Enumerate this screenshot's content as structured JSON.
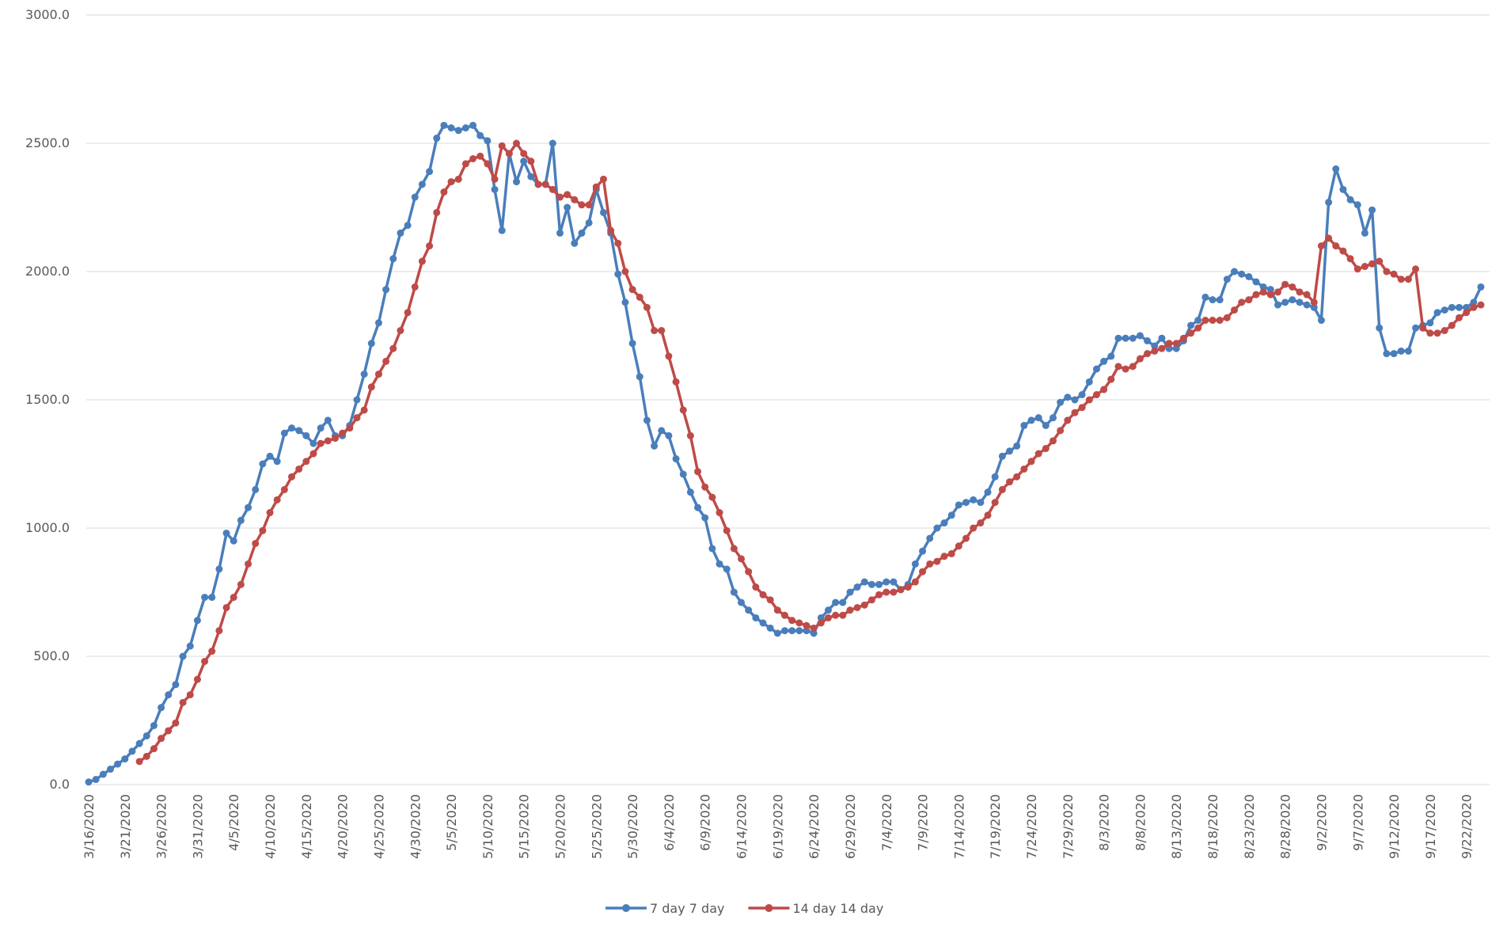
{
  "chart_data": {
    "type": "line",
    "categories": [
      "3/16/2020",
      null,
      null,
      null,
      null,
      "3/21/2020",
      null,
      null,
      null,
      null,
      "3/26/2020",
      null,
      null,
      null,
      null,
      "3/31/2020",
      null,
      null,
      null,
      null,
      "4/5/2020",
      null,
      null,
      null,
      null,
      "4/10/2020",
      null,
      null,
      null,
      null,
      "4/15/2020",
      null,
      null,
      null,
      null,
      "4/20/2020",
      null,
      null,
      null,
      null,
      "4/25/2020",
      null,
      null,
      null,
      null,
      "4/30/2020",
      null,
      null,
      null,
      null,
      "5/5/2020",
      null,
      null,
      null,
      null,
      "5/10/2020",
      null,
      null,
      null,
      null,
      "5/15/2020",
      null,
      null,
      null,
      null,
      "5/20/2020",
      null,
      null,
      null,
      null,
      "5/25/2020",
      null,
      null,
      null,
      null,
      "5/30/2020",
      null,
      null,
      null,
      null,
      "6/4/2020",
      null,
      null,
      null,
      null,
      "6/9/2020",
      null,
      null,
      null,
      null,
      "6/14/2020",
      null,
      null,
      null,
      null,
      "6/19/2020",
      null,
      null,
      null,
      null,
      "6/24/2020",
      null,
      null,
      null,
      null,
      "6/29/2020",
      null,
      null,
      null,
      null,
      "7/4/2020",
      null,
      null,
      null,
      null,
      "7/9/2020",
      null,
      null,
      null,
      null,
      "7/14/2020",
      null,
      null,
      null,
      null,
      "7/19/2020",
      null,
      null,
      null,
      null,
      "7/24/2020",
      null,
      null,
      null,
      null,
      "7/29/2020",
      null,
      null,
      null,
      null,
      "8/3/2020",
      null,
      null,
      null,
      null,
      "8/8/2020",
      null,
      null,
      null,
      null,
      "8/13/2020",
      null,
      null,
      null,
      null,
      "8/18/2020",
      null,
      null,
      null,
      null,
      "8/23/2020",
      null,
      null,
      null,
      null,
      "8/28/2020",
      null,
      null,
      null,
      null,
      "9/2/2020",
      null,
      null,
      null,
      null,
      "9/7/2020",
      null,
      null,
      null,
      null,
      "9/12/2020",
      null,
      null,
      null,
      null,
      "9/17/2020",
      null,
      null,
      null,
      null,
      "9/22/2020",
      null,
      null
    ],
    "series": [
      {
        "name": "7 day  7 day",
        "color": "#4a7ebb",
        "values": [
          10,
          20,
          40,
          60,
          80,
          100,
          130,
          160,
          190,
          230,
          300,
          350,
          390,
          500,
          540,
          640,
          730,
          730,
          840,
          980,
          950,
          1030,
          1080,
          1150,
          1250,
          1280,
          1260,
          1370,
          1390,
          1380,
          1360,
          1330,
          1390,
          1420,
          1360,
          1360,
          1400,
          1500,
          1600,
          1720,
          1800,
          1930,
          2050,
          2150,
          2180,
          2290,
          2340,
          2390,
          2520,
          2570,
          2560,
          2550,
          2560,
          2570,
          2530,
          2510,
          2320,
          2160,
          2460,
          2350,
          2430,
          2370,
          2340,
          2340,
          2500,
          2150,
          2250,
          2110,
          2150,
          2190,
          2320,
          2230,
          2150,
          1990,
          1880,
          1720,
          1590,
          1420,
          1320,
          1380,
          1360,
          1270,
          1210,
          1140,
          1080,
          1040,
          920,
          860,
          840,
          750,
          710,
          680,
          650,
          630,
          610,
          590,
          600,
          600,
          600,
          600,
          590,
          650,
          680,
          710,
          710,
          750,
          770,
          790,
          780,
          780,
          790,
          790,
          760,
          780,
          860,
          910,
          960,
          1000,
          1020,
          1050,
          1090,
          1100,
          1110,
          1100,
          1140,
          1200,
          1280,
          1300,
          1320,
          1400,
          1420,
          1430,
          1400,
          1430,
          1490,
          1510,
          1500,
          1520,
          1570,
          1620,
          1650,
          1670,
          1740,
          1740,
          1740,
          1750,
          1730,
          1710,
          1740,
          1700,
          1700,
          1730,
          1790,
          1810,
          1900,
          1890,
          1890,
          1970,
          2000,
          1990,
          1980,
          1960,
          1940,
          1930,
          1870,
          1880,
          1890,
          1880,
          1870,
          1860,
          1810,
          2270,
          2400,
          2320,
          2280,
          2260,
          2150,
          2240,
          1780,
          1680,
          1680,
          1690,
          1690,
          1780,
          1790,
          1800,
          1840,
          1850,
          1860,
          1860,
          1860,
          1880,
          1940
        ]
      },
      {
        "name": "14 day 14 day",
        "color": "#be4b48",
        "values": [
          null,
          null,
          null,
          null,
          null,
          null,
          null,
          90,
          110,
          140,
          180,
          210,
          240,
          320,
          350,
          410,
          480,
          520,
          600,
          690,
          730,
          780,
          860,
          940,
          990,
          1060,
          1110,
          1150,
          1200,
          1230,
          1260,
          1290,
          1330,
          1340,
          1350,
          1370,
          1390,
          1430,
          1460,
          1550,
          1600,
          1650,
          1700,
          1770,
          1840,
          1940,
          2040,
          2100,
          2230,
          2310,
          2350,
          2360,
          2420,
          2440,
          2450,
          2420,
          2360,
          2490,
          2460,
          2500,
          2460,
          2430,
          2340,
          2340,
          2320,
          2290,
          2300,
          2280,
          2260,
          2260,
          2330,
          2360,
          2160,
          2110,
          2000,
          1930,
          1900,
          1860,
          1770,
          1770,
          1670,
          1570,
          1460,
          1360,
          1220,
          1160,
          1120,
          1060,
          990,
          920,
          880,
          830,
          770,
          740,
          720,
          680,
          660,
          640,
          630,
          620,
          610,
          630,
          650,
          660,
          660,
          680,
          690,
          700,
          720,
          740,
          750,
          750,
          760,
          770,
          790,
          830,
          860,
          870,
          890,
          900,
          930,
          960,
          1000,
          1020,
          1050,
          1100,
          1150,
          1180,
          1200,
          1230,
          1260,
          1290,
          1310,
          1340,
          1380,
          1420,
          1450,
          1470,
          1500,
          1520,
          1540,
          1580,
          1630,
          1620,
          1630,
          1660,
          1680,
          1690,
          1700,
          1720,
          1720,
          1740,
          1760,
          1780,
          1810,
          1810,
          1810,
          1820,
          1850,
          1880,
          1890,
          1910,
          1920,
          1910,
          1920,
          1950,
          1940,
          1920,
          1910,
          1880,
          2100,
          2130,
          2100,
          2080,
          2050,
          2010,
          2020,
          2030,
          2040,
          2000,
          1990,
          1970,
          1970,
          2010,
          1780,
          1760,
          1760,
          1770,
          1790,
          1820,
          1840,
          1860,
          1870
        ]
      }
    ],
    "ylim": [
      0,
      3000
    ],
    "yticks": [
      {
        "value": 0,
        "label": "0.0"
      },
      {
        "value": 500,
        "label": "500.0"
      },
      {
        "value": 1000,
        "label": "1000.0"
      },
      {
        "value": 1500,
        "label": "1500.0"
      },
      {
        "value": 2000,
        "label": "2000.0"
      },
      {
        "value": 2500,
        "label": "2500.0"
      },
      {
        "value": 3000,
        "label": "3000.0"
      }
    ],
    "grid": true,
    "legend": "bottom"
  }
}
